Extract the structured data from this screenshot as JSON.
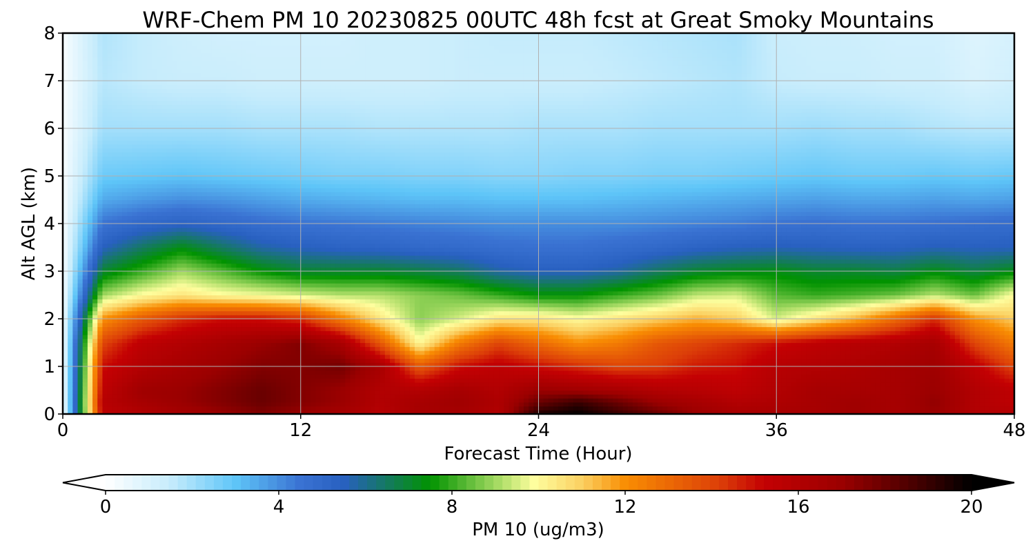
{
  "chart_data": {
    "type": "heatmap",
    "title": "WRF-Chem PM 10  20230825 00UTC 48h fcst at Great Smoky Mountains",
    "xlabel": "Forecast Time (Hour)",
    "ylabel": "Alt AGL (km)",
    "xlim": [
      0,
      48
    ],
    "ylim": [
      0,
      8
    ],
    "x_ticks": [
      "0",
      "12",
      "24",
      "36",
      "48"
    ],
    "y_ticks": [
      "0",
      "1",
      "2",
      "3",
      "4",
      "5",
      "6",
      "7",
      "8"
    ],
    "grid": true,
    "colorbar": {
      "label": "PM 10  (ug/m3)",
      "range": [
        0,
        20
      ],
      "ticks": [
        "0",
        "4",
        "8",
        "12",
        "16",
        "20"
      ],
      "extend": "both",
      "orientation": "horizontal",
      "stops": [
        {
          "v": 0,
          "c": "#ffffff"
        },
        {
          "v": 1.5,
          "c": "#c6ecfc"
        },
        {
          "v": 3,
          "c": "#5ec5f8"
        },
        {
          "v": 4.5,
          "c": "#3a72d2"
        },
        {
          "v": 5.5,
          "c": "#2860c0"
        },
        {
          "v": 7.5,
          "c": "#019300"
        },
        {
          "v": 9.2,
          "c": "#b6e16d"
        },
        {
          "v": 9.9,
          "c": "#fefe9e"
        },
        {
          "v": 11,
          "c": "#fbd062"
        },
        {
          "v": 12,
          "c": "#f98e03"
        },
        {
          "v": 14.2,
          "c": "#dc3e08"
        },
        {
          "v": 15.2,
          "c": "#c40103"
        },
        {
          "v": 17,
          "c": "#9b0000"
        },
        {
          "v": 19,
          "c": "#380000"
        },
        {
          "v": 20,
          "c": "#000000"
        }
      ]
    },
    "times_hour": [
      0,
      2,
      4,
      6,
      8,
      10,
      12,
      14,
      16,
      18,
      20,
      22,
      24,
      26,
      28,
      30,
      32,
      34,
      36,
      38,
      40,
      42,
      44,
      46,
      48
    ],
    "altitudes_km": [
      0,
      0.25,
      0.5,
      1,
      1.5,
      2,
      2.5,
      3,
      3.5,
      4,
      4.5,
      5,
      6,
      7,
      8
    ],
    "series": [
      {
        "name": "0 km",
        "values": [
          0.2,
          15.5,
          16.0,
          16.5,
          17.0,
          17.5,
          17.0,
          16.5,
          15.8,
          16.5,
          16.5,
          16.0,
          19.5,
          20.0,
          19.0,
          18.0,
          17.0,
          16.5,
          16.5,
          16.5,
          16.8,
          16.5,
          17.0,
          16.0,
          16.0
        ]
      },
      {
        "name": "0.25 km",
        "values": [
          0.2,
          15.8,
          16.5,
          17.0,
          17.5,
          18.0,
          17.5,
          17.0,
          16.0,
          16.5,
          16.8,
          16.2,
          18.0,
          19.0,
          18.0,
          17.0,
          16.5,
          16.0,
          16.2,
          16.5,
          16.8,
          16.5,
          17.2,
          16.0,
          15.5
        ]
      },
      {
        "name": "0.5 km",
        "values": [
          0.2,
          15.5,
          16.8,
          17.0,
          17.5,
          18.0,
          17.5,
          17.0,
          16.0,
          16.0,
          16.5,
          16.0,
          17.0,
          16.8,
          16.5,
          16.0,
          15.8,
          15.5,
          16.0,
          16.5,
          16.5,
          16.5,
          17.0,
          16.0,
          15.5
        ]
      },
      {
        "name": "1 km",
        "values": [
          0.2,
          15.0,
          16.0,
          16.5,
          17.0,
          17.5,
          17.5,
          17.8,
          16.5,
          13.5,
          15.0,
          15.5,
          15.0,
          14.5,
          14.0,
          14.2,
          14.8,
          15.0,
          15.8,
          16.0,
          16.2,
          16.5,
          16.8,
          15.5,
          14.0
        ]
      },
      {
        "name": "1.5 km",
        "values": [
          0.2,
          14.0,
          15.5,
          16.0,
          16.5,
          17.0,
          17.5,
          16.5,
          13.5,
          10.0,
          12.5,
          14.0,
          13.0,
          12.0,
          12.5,
          13.5,
          14.0,
          14.5,
          15.0,
          15.5,
          15.8,
          16.0,
          16.5,
          14.0,
          12.5
        ]
      },
      {
        "name": "2 km",
        "values": [
          0.2,
          12.0,
          13.5,
          14.5,
          15.0,
          15.0,
          14.5,
          12.5,
          10.5,
          8.8,
          9.5,
          10.5,
          10.5,
          10.0,
          10.5,
          11.0,
          11.5,
          11.0,
          9.5,
          10.5,
          11.5,
          13.0,
          14.5,
          12.0,
          11.0
        ]
      },
      {
        "name": "2.5 km",
        "values": [
          0.2,
          9.0,
          10.0,
          10.5,
          10.0,
          9.8,
          9.5,
          9.2,
          9.2,
          8.8,
          8.5,
          8.0,
          7.5,
          7.5,
          8.0,
          8.5,
          9.3,
          9.5,
          8.3,
          8.0,
          8.2,
          8.5,
          9.2,
          8.5,
          10.0
        ]
      },
      {
        "name": "3 km",
        "values": [
          0.2,
          7.0,
          8.0,
          9.0,
          8.3,
          7.5,
          7.0,
          7.0,
          7.0,
          6.8,
          6.5,
          5.8,
          5.5,
          5.5,
          5.8,
          6.5,
          7.0,
          7.2,
          7.3,
          7.0,
          7.0,
          6.8,
          7.3,
          6.8,
          7.3
        ]
      },
      {
        "name": "3.5 km",
        "values": [
          0.2,
          5.5,
          6.5,
          7.3,
          6.5,
          5.8,
          5.5,
          5.3,
          5.2,
          5.0,
          4.9,
          4.7,
          4.6,
          4.6,
          4.8,
          5.0,
          5.3,
          5.5,
          5.6,
          5.5,
          5.4,
          5.4,
          5.6,
          5.5,
          5.5
        ]
      },
      {
        "name": "4 km",
        "values": [
          0.2,
          4.5,
          5.0,
          5.3,
          5.0,
          4.7,
          4.5,
          4.4,
          4.3,
          4.2,
          4.1,
          4.0,
          4.0,
          4.0,
          4.0,
          4.1,
          4.2,
          4.3,
          4.5,
          4.6,
          4.5,
          4.5,
          4.6,
          4.7,
          4.8
        ]
      },
      {
        "name": "4.5 km",
        "values": [
          0.2,
          3.5,
          3.8,
          4.0,
          3.9,
          3.7,
          3.5,
          3.4,
          3.3,
          3.2,
          3.2,
          3.1,
          3.1,
          3.1,
          3.2,
          3.3,
          3.4,
          3.5,
          3.6,
          3.7,
          3.6,
          3.6,
          3.7,
          3.6,
          3.7
        ]
      },
      {
        "name": "5 km",
        "values": [
          0.2,
          2.8,
          2.9,
          3.0,
          2.9,
          2.8,
          2.7,
          2.6,
          2.6,
          2.5,
          2.5,
          2.4,
          2.4,
          2.5,
          2.5,
          2.6,
          2.6,
          2.7,
          2.8,
          2.9,
          2.8,
          2.8,
          2.9,
          2.8,
          2.9
        ]
      },
      {
        "name": "6 km",
        "values": [
          0.2,
          2.0,
          2.0,
          2.0,
          2.0,
          1.9,
          1.9,
          1.9,
          1.8,
          1.8,
          1.8,
          1.8,
          1.9,
          1.9,
          1.9,
          2.0,
          2.0,
          2.0,
          2.0,
          2.1,
          2.0,
          2.0,
          1.8,
          1.7,
          1.7
        ]
      },
      {
        "name": "7 km",
        "values": [
          0.2,
          1.7,
          1.5,
          1.4,
          1.4,
          1.3,
          1.3,
          1.3,
          1.3,
          1.3,
          1.4,
          1.4,
          1.4,
          1.4,
          1.5,
          1.6,
          1.7,
          1.8,
          1.5,
          1.4,
          1.4,
          1.3,
          1.3,
          1.0,
          1.2
        ]
      },
      {
        "name": "8 km",
        "values": [
          0.2,
          1.8,
          1.5,
          1.3,
          1.2,
          1.2,
          1.2,
          1.2,
          1.3,
          1.3,
          1.4,
          1.5,
          1.5,
          1.5,
          1.6,
          1.7,
          1.8,
          1.9,
          1.4,
          1.3,
          1.3,
          1.2,
          1.2,
          0.9,
          1.1
        ]
      }
    ]
  }
}
